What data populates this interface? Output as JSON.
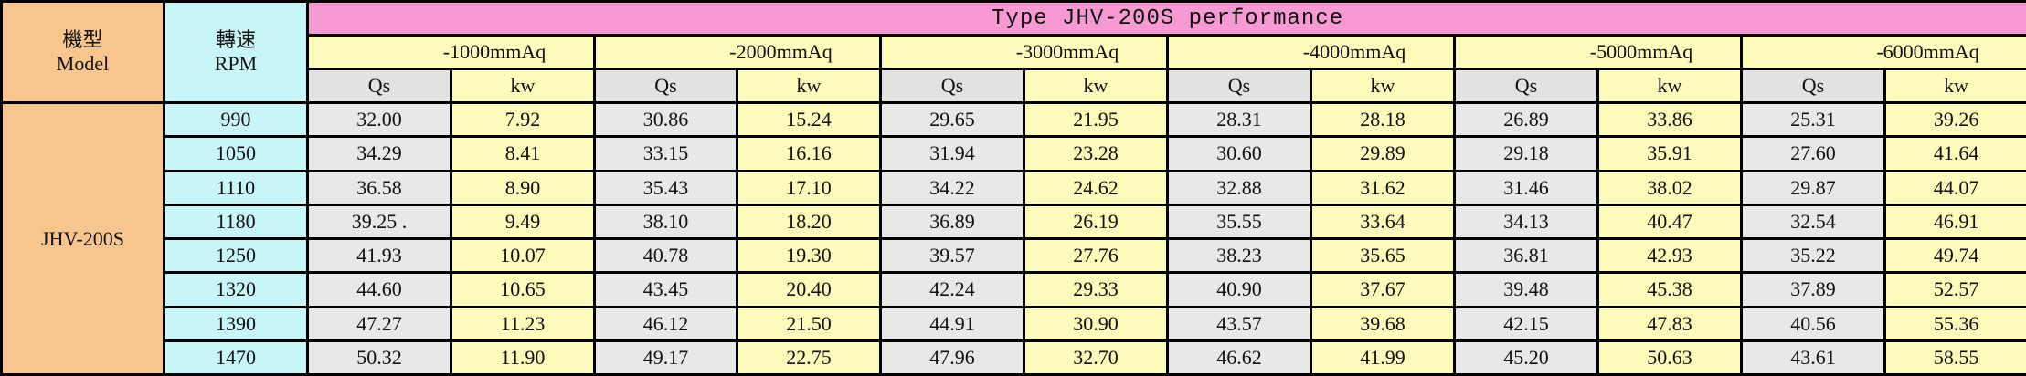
{
  "table": {
    "title": "Type JHV-200S performance",
    "model_header": {
      "zh": "機型",
      "en": "Model"
    },
    "rpm_header": {
      "zh": "轉速",
      "en": "RPM"
    },
    "model": "JHV-200S",
    "pressures": [
      "-1000mmAq",
      "-2000mmAq",
      "-3000mmAq",
      "-4000mmAq",
      "-5000mmAq",
      "-6000mmAq"
    ],
    "sub_headers": {
      "qs": "Qs",
      "kw": "kw"
    },
    "rows": [
      {
        "rpm": "990",
        "values": [
          "32.00",
          "7.92",
          "30.86",
          "15.24",
          "29.65",
          "21.95",
          "28.31",
          "28.18",
          "26.89",
          "33.86",
          "25.31",
          "39.26"
        ]
      },
      {
        "rpm": "1050",
        "values": [
          "34.29",
          "8.41",
          "33.15",
          "16.16",
          "31.94",
          "23.28",
          "30.60",
          "29.89",
          "29.18",
          "35.91",
          "27.60",
          "41.64"
        ]
      },
      {
        "rpm": "1110",
        "values": [
          "36.58",
          "8.90",
          "35.43",
          "17.10",
          "34.22",
          "24.62",
          "32.88",
          "31.62",
          "31.46",
          "38.02",
          "29.87",
          "44.07"
        ]
      },
      {
        "rpm": "1180",
        "values": [
          "39.25 .",
          "9.49",
          "38.10",
          "18.20",
          "36.89",
          "26.19",
          "35.55",
          "33.64",
          "34.13",
          "40.47",
          "32.54",
          "46.91"
        ]
      },
      {
        "rpm": "1250",
        "values": [
          "41.93",
          "10.07",
          "40.78",
          "19.30",
          "39.57",
          "27.76",
          "38.23",
          "35.65",
          "36.81",
          "42.93",
          "35.22",
          "49.74"
        ]
      },
      {
        "rpm": "1320",
        "values": [
          "44.60",
          "10.65",
          "43.45",
          "20.40",
          "42.24",
          "29.33",
          "40.90",
          "37.67",
          "39.48",
          "45.38",
          "37.89",
          "52.57"
        ]
      },
      {
        "rpm": "1390",
        "values": [
          "47.27",
          "11.23",
          "46.12",
          "21.50",
          "44.91",
          "30.90",
          "43.57",
          "39.68",
          "42.15",
          "47.83",
          "40.56",
          "55.36"
        ]
      },
      {
        "rpm": "1470",
        "values": [
          "50.32",
          "11.90",
          "49.17",
          "22.75",
          "47.96",
          "32.70",
          "46.62",
          "41.99",
          "45.20",
          "50.63",
          "43.61",
          "58.55"
        ]
      }
    ]
  },
  "colors": {
    "model": "#f8c58f",
    "rpm": "#c8f6f8",
    "title": "#f79ad4",
    "pressure": "#fdfbbc",
    "qs": "#e8e8e8",
    "kw": "#fdfbbc"
  }
}
